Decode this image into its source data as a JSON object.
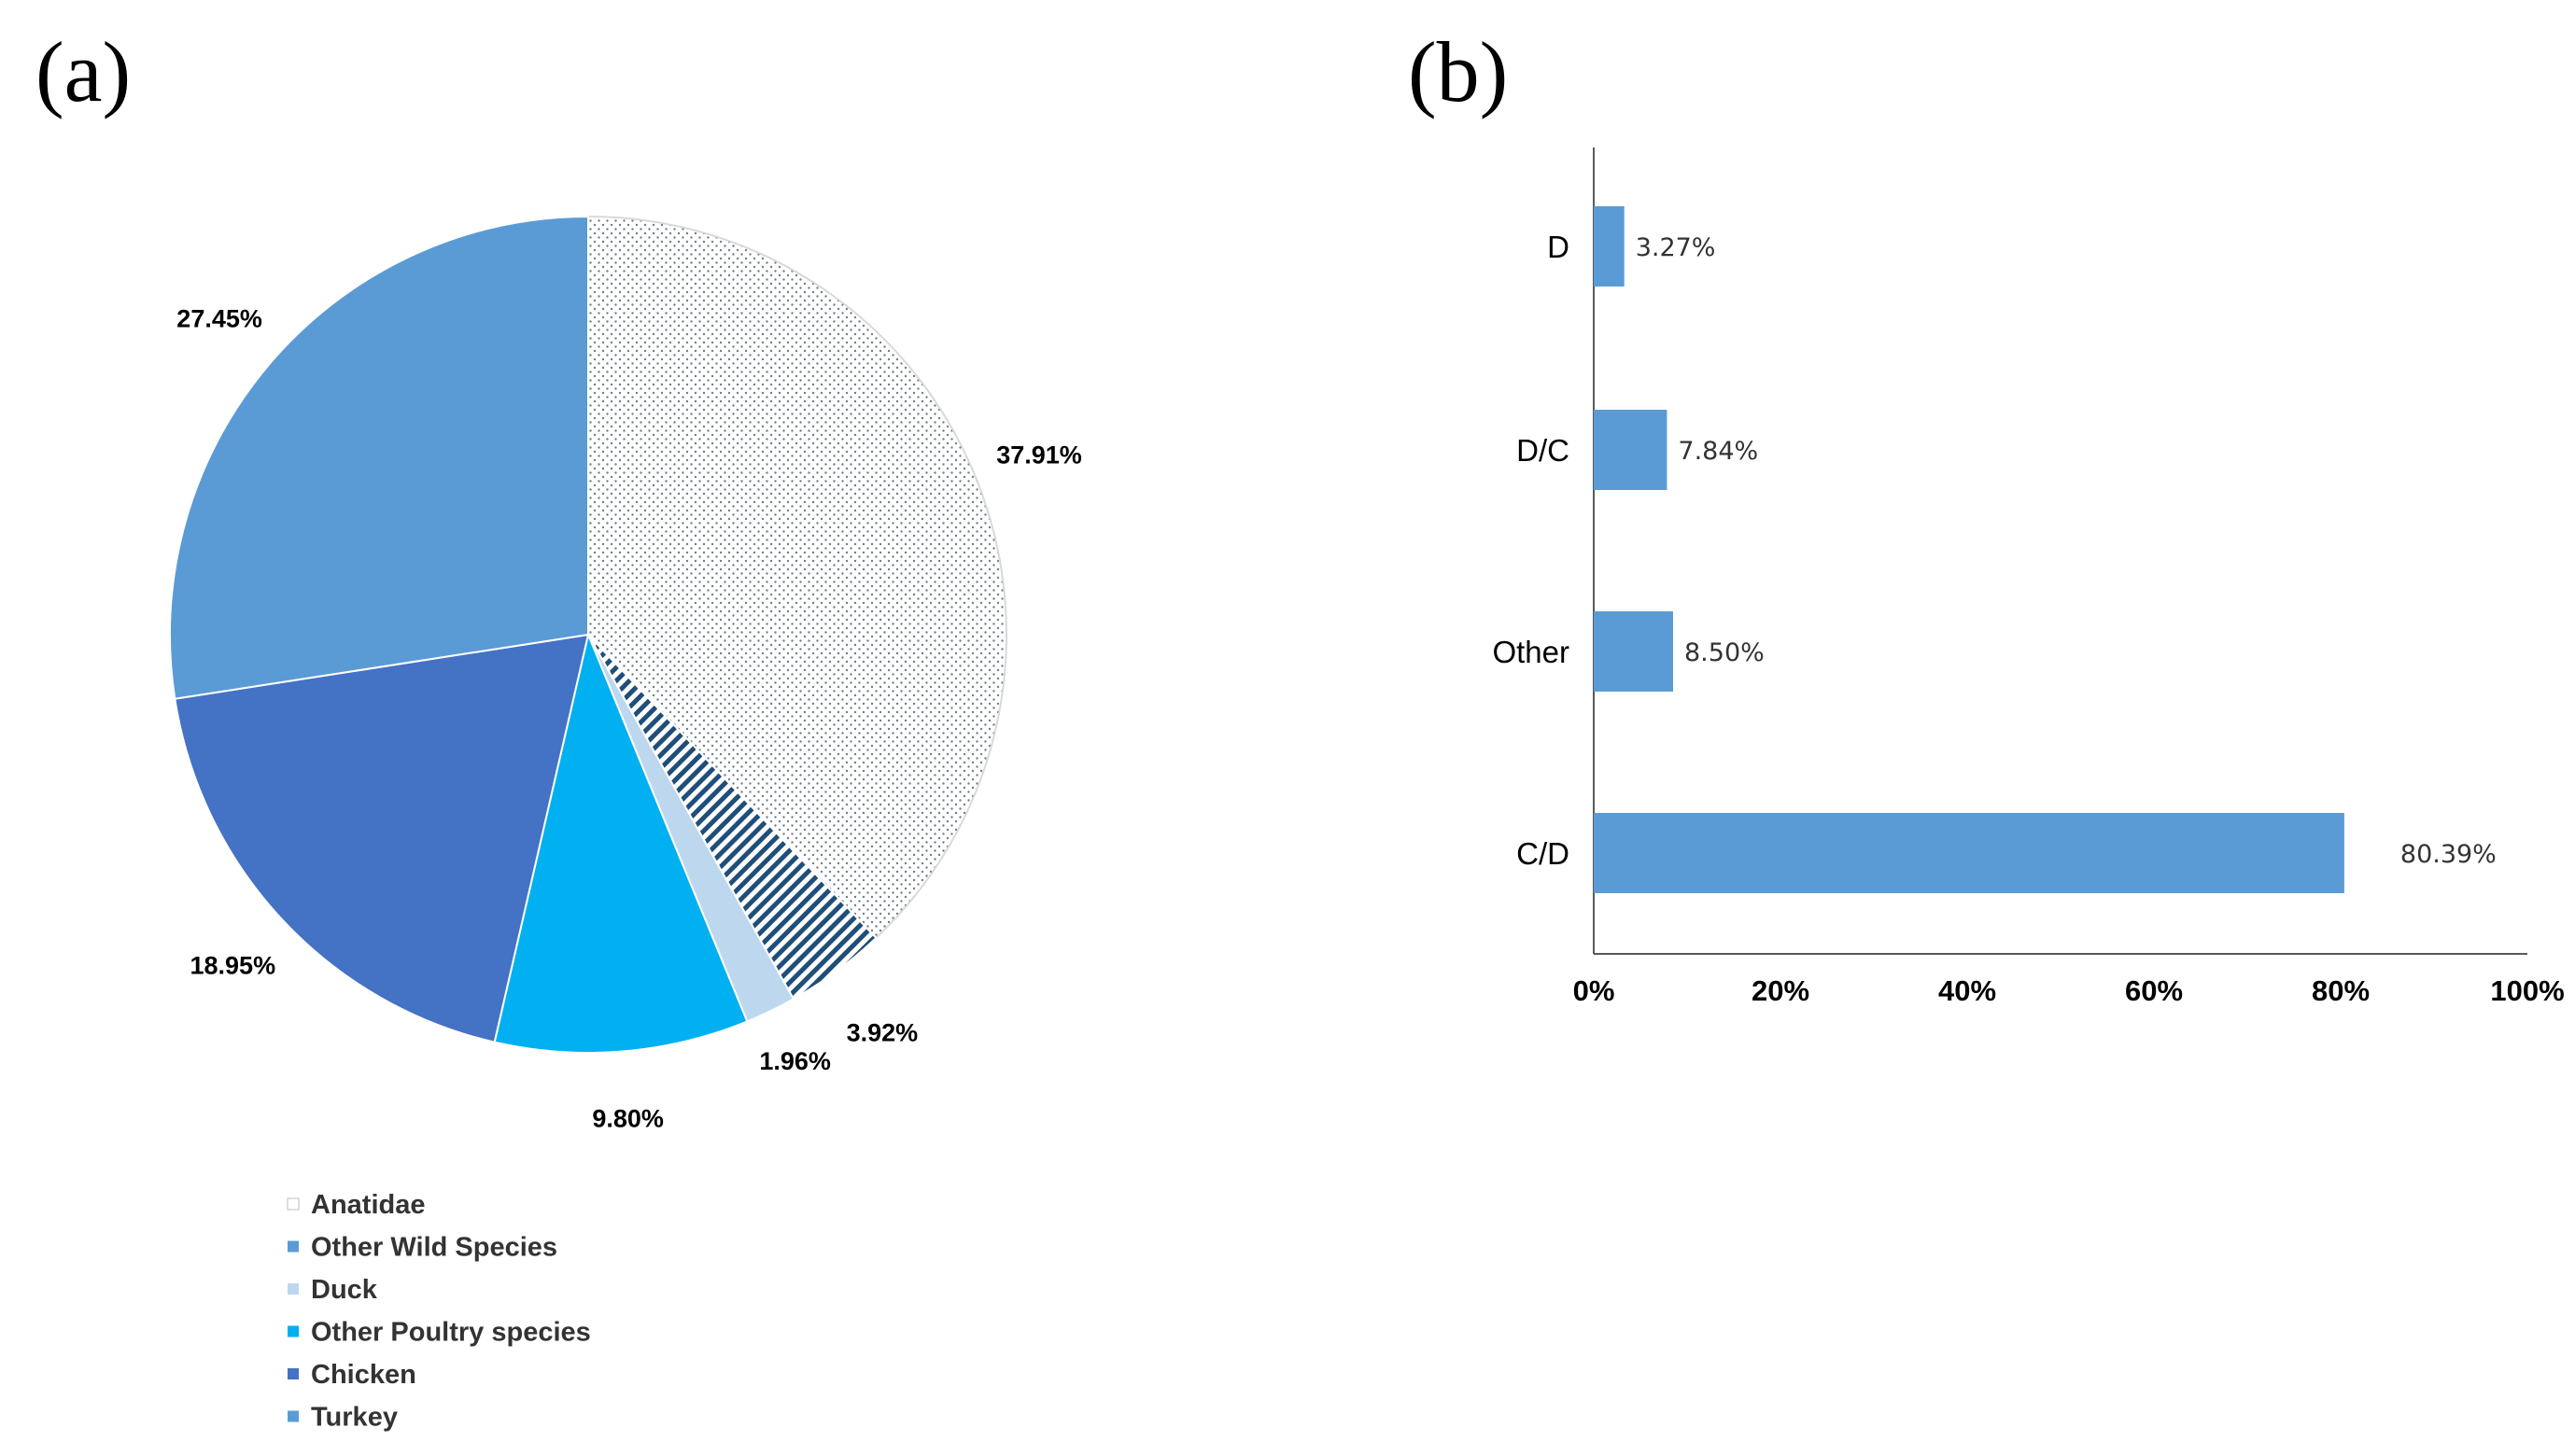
{
  "panels": {
    "a_label": "(a)",
    "b_label": "(b)"
  },
  "colors": {
    "anatidae_fill": "#ffffff",
    "anatidae_dots": "#6f7f86",
    "other_wild": "#5b9bd5",
    "duck": "#bdd7ee",
    "other_poultry": "#00b0f0",
    "chicken": "#4472c4",
    "turkey_hatch": "#1f4e79",
    "bar": "#5b9bd5",
    "axis": "#595959"
  },
  "chart_data": [
    {
      "type": "pie",
      "title": "",
      "slices": [
        {
          "name": "Anatidae",
          "value": 37.91,
          "label": "37.91%",
          "fill": "dots"
        },
        {
          "name": "Turkey",
          "value": 3.92,
          "label": "3.92%",
          "fill": "hatch"
        },
        {
          "name": "Duck",
          "value": 1.96,
          "label": "1.96%",
          "fill": "solid"
        },
        {
          "name": "Other Poultry species",
          "value": 9.8,
          "label": "9.80%",
          "fill": "solid"
        },
        {
          "name": "Chicken",
          "value": 18.95,
          "label": "18.95%",
          "fill": "solid"
        },
        {
          "name": "Other Wild Species",
          "value": 27.45,
          "label": "27.45%",
          "fill": "solid"
        }
      ],
      "legend": {
        "position": "bottom-left",
        "entries": [
          "Anatidae",
          "Other Wild Species",
          "Duck",
          "Other Poultry species",
          "Chicken",
          "Turkey"
        ]
      }
    },
    {
      "type": "bar",
      "orientation": "horizontal",
      "title": "",
      "categories": [
        "D",
        "D/C",
        "Other",
        "C/D"
      ],
      "values": [
        3.27,
        7.84,
        8.5,
        80.39
      ],
      "value_labels": [
        "3.27%",
        "7.84%",
        "8.50%",
        "80.39%"
      ],
      "xlim": [
        0,
        100
      ],
      "x_ticks": [
        "0%",
        "20%",
        "40%",
        "60%",
        "80%",
        "100%"
      ],
      "xlabel": "",
      "ylabel": "",
      "grid": false
    }
  ]
}
